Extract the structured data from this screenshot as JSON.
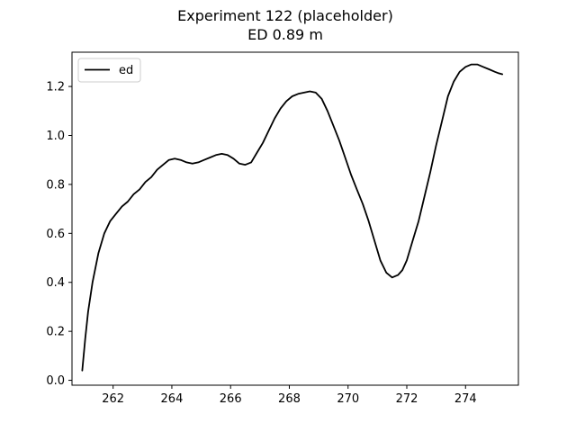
{
  "chart_data": {
    "type": "line",
    "title": "Experiment 122 (placeholder)",
    "subtitle": "ED 0.89 m",
    "xlabel": "",
    "ylabel": "",
    "xlim": [
      260.6,
      275.8
    ],
    "ylim": [
      -0.02,
      1.34
    ],
    "xticks": [
      262,
      264,
      266,
      268,
      270,
      272,
      274
    ],
    "yticks": [
      0.0,
      0.2,
      0.4,
      0.6,
      0.8,
      1.0,
      1.2
    ],
    "grid": false,
    "legend": {
      "position": "top-left"
    },
    "series": [
      {
        "name": "ed",
        "color": "#000000",
        "x": [
          260.95,
          261.05,
          261.15,
          261.3,
          261.5,
          261.7,
          261.9,
          262.1,
          262.3,
          262.5,
          262.7,
          262.9,
          263.1,
          263.3,
          263.5,
          263.7,
          263.9,
          264.1,
          264.3,
          264.5,
          264.7,
          264.9,
          265.1,
          265.3,
          265.5,
          265.7,
          265.9,
          266.1,
          266.3,
          266.5,
          266.7,
          266.9,
          267.1,
          267.3,
          267.5,
          267.7,
          267.9,
          268.1,
          268.3,
          268.5,
          268.7,
          268.9,
          269.1,
          269.3,
          269.5,
          269.7,
          269.9,
          270.1,
          270.3,
          270.5,
          270.7,
          270.9,
          271.1,
          271.3,
          271.5,
          271.7,
          271.85,
          272.0,
          272.2,
          272.4,
          272.6,
          272.8,
          273.0,
          273.2,
          273.4,
          273.6,
          273.8,
          274.0,
          274.2,
          274.4,
          274.6,
          274.8,
          275.0,
          275.1,
          275.25
        ],
        "y": [
          0.04,
          0.17,
          0.28,
          0.4,
          0.52,
          0.6,
          0.65,
          0.68,
          0.71,
          0.73,
          0.76,
          0.78,
          0.81,
          0.83,
          0.86,
          0.88,
          0.9,
          0.905,
          0.9,
          0.89,
          0.885,
          0.89,
          0.9,
          0.91,
          0.92,
          0.925,
          0.92,
          0.905,
          0.885,
          0.88,
          0.89,
          0.93,
          0.97,
          1.02,
          1.07,
          1.11,
          1.14,
          1.16,
          1.17,
          1.175,
          1.18,
          1.175,
          1.15,
          1.1,
          1.04,
          0.98,
          0.91,
          0.84,
          0.78,
          0.72,
          0.65,
          0.57,
          0.49,
          0.44,
          0.42,
          0.43,
          0.45,
          0.49,
          0.57,
          0.65,
          0.75,
          0.85,
          0.96,
          1.06,
          1.16,
          1.22,
          1.26,
          1.28,
          1.29,
          1.29,
          1.28,
          1.27,
          1.26,
          1.255,
          1.25
        ]
      }
    ]
  }
}
